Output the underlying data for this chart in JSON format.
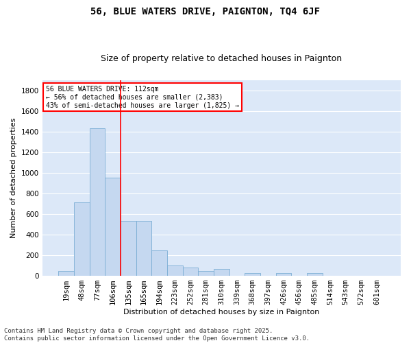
{
  "title": "56, BLUE WATERS DRIVE, PAIGNTON, TQ4 6JF",
  "subtitle": "Size of property relative to detached houses in Paignton",
  "xlabel": "Distribution of detached houses by size in Paignton",
  "ylabel": "Number of detached properties",
  "categories": [
    "19sqm",
    "48sqm",
    "77sqm",
    "106sqm",
    "135sqm",
    "165sqm",
    "194sqm",
    "223sqm",
    "252sqm",
    "281sqm",
    "310sqm",
    "339sqm",
    "368sqm",
    "397sqm",
    "426sqm",
    "456sqm",
    "485sqm",
    "514sqm",
    "543sqm",
    "572sqm",
    "601sqm"
  ],
  "values": [
    50,
    710,
    1430,
    950,
    530,
    530,
    250,
    100,
    80,
    50,
    70,
    0,
    30,
    0,
    30,
    0,
    30,
    0,
    0,
    0,
    0
  ],
  "bar_color": "#c5d8f0",
  "bar_edge_color": "#7aadd4",
  "vline_x_index": 3,
  "vline_color": "red",
  "annotation_text": "56 BLUE WATERS DRIVE: 112sqm\n← 56% of detached houses are smaller (2,383)\n43% of semi-detached houses are larger (1,825) →",
  "annotation_box_color": "white",
  "annotation_box_edge_color": "red",
  "ylim": [
    0,
    1900
  ],
  "yticks": [
    0,
    200,
    400,
    600,
    800,
    1000,
    1200,
    1400,
    1600,
    1800
  ],
  "bg_color": "#dce8f8",
  "grid_color": "white",
  "footer": "Contains HM Land Registry data © Crown copyright and database right 2025.\nContains public sector information licensed under the Open Government Licence v3.0.",
  "title_fontsize": 10,
  "subtitle_fontsize": 9,
  "xlabel_fontsize": 8,
  "ylabel_fontsize": 8,
  "tick_fontsize": 7.5,
  "footer_fontsize": 6.5,
  "annotation_fontsize": 7
}
